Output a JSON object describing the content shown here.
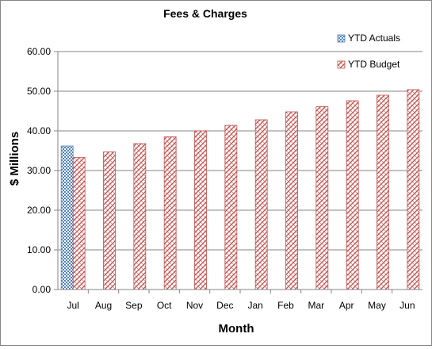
{
  "chart_data": {
    "type": "bar",
    "title": "Fees & Charges",
    "xlabel": "Month",
    "ylabel": "$ Millions",
    "ylim": [
      0,
      60
    ],
    "ytick_step": 10,
    "ytick_labels": [
      "0.00",
      "10.00",
      "20.00",
      "30.00",
      "40.00",
      "50.00",
      "60.00"
    ],
    "categories": [
      "Jul",
      "Aug",
      "Sep",
      "Oct",
      "Nov",
      "Dec",
      "Jan",
      "Feb",
      "Mar",
      "Apr",
      "May",
      "Jun"
    ],
    "series": [
      {
        "name": "YTD Actuals",
        "color": "#4f81bd",
        "pattern": "checker",
        "values": [
          36.2,
          null,
          null,
          null,
          null,
          null,
          null,
          null,
          null,
          null,
          null,
          null
        ]
      },
      {
        "name": "YTD Budget",
        "color": "#c0504d",
        "pattern": "weave",
        "values": [
          33.3,
          34.7,
          36.8,
          38.5,
          40.0,
          41.4,
          42.8,
          44.8,
          46.1,
          47.6,
          49.0,
          50.4
        ]
      }
    ],
    "grid": true,
    "legend_position": "top-right"
  }
}
